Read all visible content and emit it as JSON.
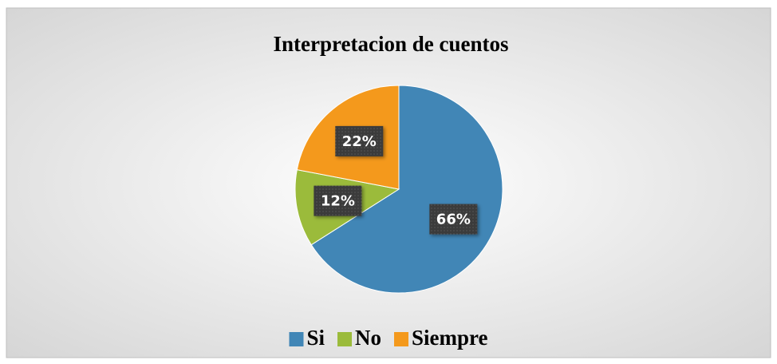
{
  "chart_data": {
    "type": "pie",
    "title": "Interpretacion de cuentos",
    "categories": [
      "Si",
      "No",
      "Siempre"
    ],
    "values": [
      66,
      12,
      22
    ],
    "value_labels": [
      "66%",
      "12%",
      "22%"
    ],
    "colors": [
      "#4186b6",
      "#9bbb3b",
      "#f4991c"
    ],
    "legend": "bottom"
  }
}
